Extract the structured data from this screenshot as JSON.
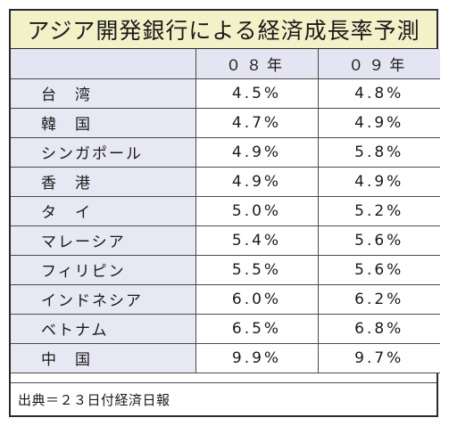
{
  "title": "アジア開発銀行による経済成長率予測",
  "table": {
    "header": {
      "label": "",
      "col1": "０８年",
      "col2": "０９年"
    },
    "rows": [
      {
        "name": "台　湾",
        "v08": "4.5%",
        "v09": "4.8%"
      },
      {
        "name": "韓　国",
        "v08": "4.7%",
        "v09": "4.9%"
      },
      {
        "name": "シンガポール",
        "v08": "4.9%",
        "v09": "5.8%"
      },
      {
        "name": "香　港",
        "v08": "4.9%",
        "v09": "4.9%"
      },
      {
        "name": "タ　イ",
        "v08": "5.0%",
        "v09": "5.2%"
      },
      {
        "name": "マレーシア",
        "v08": "5.4%",
        "v09": "5.6%"
      },
      {
        "name": "フィリピン",
        "v08": "5.5%",
        "v09": "5.6%"
      },
      {
        "name": "インドネシア",
        "v08": "6.0%",
        "v09": "6.2%"
      },
      {
        "name": "ベトナム",
        "v08": "6.5%",
        "v09": "6.8%"
      },
      {
        "name": "中　国",
        "v08": "9.9%",
        "v09": "9.7%"
      }
    ]
  },
  "source": "出典＝２３日付経済日報",
  "colors": {
    "title_bg": "#f3f1c8",
    "header_bg": "#e4e4f2",
    "name_bg": "#e8e8f4",
    "border": "#2a2a2a"
  }
}
